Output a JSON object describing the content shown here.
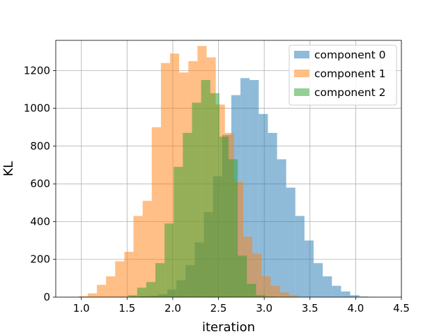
{
  "chart_data": {
    "type": "histogram",
    "title": "",
    "xlabel": "iteration",
    "ylabel": "KL",
    "xlim": [
      0.72,
      4.5
    ],
    "ylim": [
      0,
      1360
    ],
    "xticks": [
      1.0,
      1.5,
      2.0,
      2.5,
      3.0,
      3.5,
      4.0,
      4.5
    ],
    "yticks": [
      0,
      200,
      400,
      600,
      800,
      1000,
      1200
    ],
    "grid": true,
    "legend_position": "top-right",
    "series": [
      {
        "name": "component 0",
        "color": "#1f77b4",
        "bin_start": 1.44,
        "bin_width": 0.1,
        "counts": [
          2,
          3,
          5,
          8,
          15,
          40,
          90,
          170,
          290,
          450,
          640,
          860,
          1070,
          1160,
          1150,
          970,
          870,
          730,
          580,
          430,
          300,
          180,
          110,
          60,
          30,
          10,
          3
        ]
      },
      {
        "name": "component 1",
        "color": "#ff7f0e",
        "bin_start": 0.87,
        "bin_width": 0.1,
        "counts": [
          1,
          5,
          20,
          65,
          110,
          190,
          240,
          430,
          510,
          900,
          1240,
          1290,
          1190,
          1250,
          1330,
          1270,
          1020,
          870,
          610,
          320,
          230,
          110,
          60,
          25,
          10
        ]
      },
      {
        "name": "component 2",
        "color": "#2ca02c",
        "bin_start": 1.51,
        "bin_width": 0.1,
        "counts": [
          10,
          50,
          80,
          180,
          390,
          690,
          870,
          1030,
          1150,
          1080,
          850,
          730,
          220,
          70,
          10,
          3
        ]
      }
    ]
  }
}
